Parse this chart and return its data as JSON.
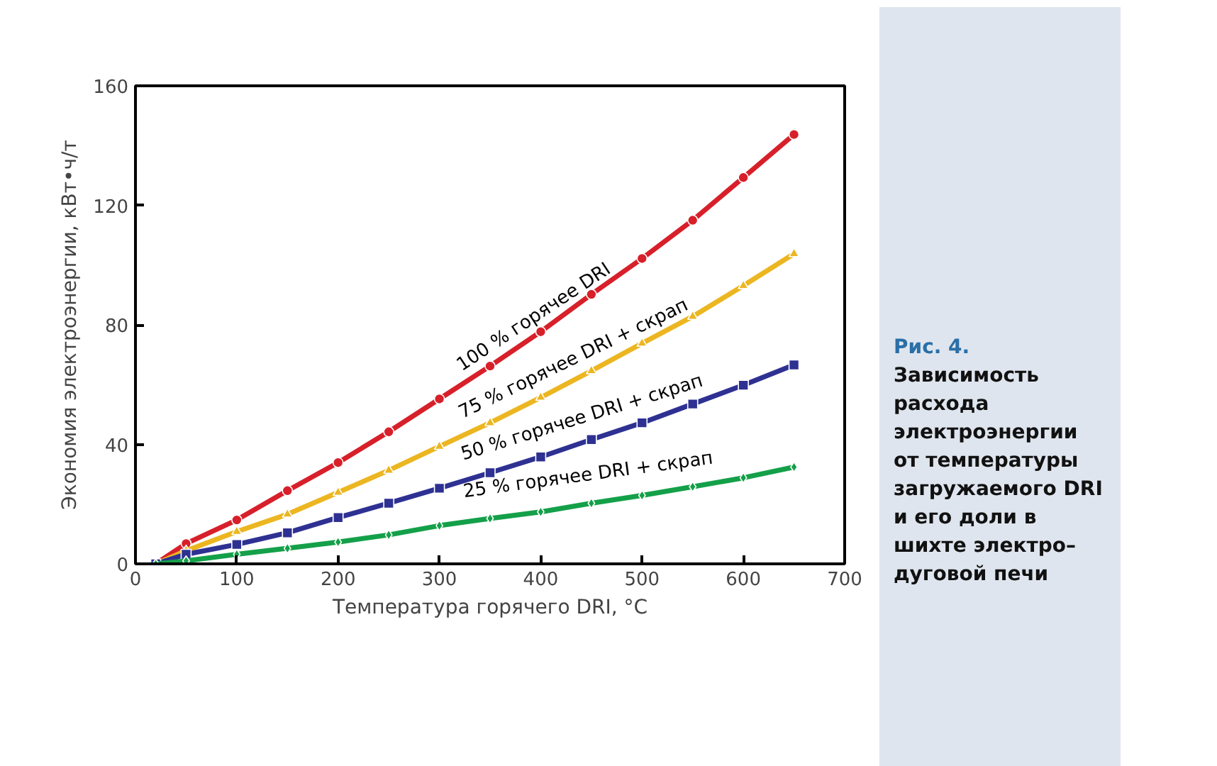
{
  "chart_data": {
    "type": "line",
    "xlabel": "Температура горячего DRI, °C",
    "ylabel": "Экономия электроэнергии, кВт•ч/т",
    "x": [
      20,
      50,
      100,
      150,
      200,
      250,
      300,
      350,
      400,
      450,
      500,
      550,
      600,
      650
    ],
    "series": [
      {
        "name": "100 % горячее DRI",
        "color": "#d7202a",
        "marker": "circle",
        "values": [
          0,
          6.8,
          14.7,
          24.5,
          33.9,
          44.2,
          55.2,
          66.2,
          77.7,
          90.2,
          102.2,
          115,
          129.3,
          143.7
        ]
      },
      {
        "name": "75 % горячее DRI + скрап",
        "color": "#ecb621",
        "marker": "triangle",
        "values": [
          0,
          4.4,
          10.8,
          16.6,
          23.9,
          31.3,
          39.3,
          47.2,
          55.7,
          64.6,
          73.8,
          82.8,
          93.1,
          103.8
        ]
      },
      {
        "name": "50 % горячее DRI + скрап",
        "color": "#2e3192",
        "marker": "square",
        "values": [
          0,
          3.2,
          6.5,
          10.4,
          15.5,
          20.3,
          25.3,
          30.5,
          35.8,
          41.6,
          47.2,
          53.5,
          59.8,
          66.6
        ]
      },
      {
        "name": "25 % горячее DRI + скрап",
        "color": "#14a049",
        "marker": "diamond",
        "values": [
          0,
          1.0,
          3.2,
          5.2,
          7.3,
          9.7,
          12.8,
          15.2,
          17.4,
          20.3,
          22.9,
          25.8,
          28.8,
          32.4
        ]
      }
    ],
    "xlim": [
      0,
      700
    ],
    "xticks": [
      0,
      100,
      200,
      300,
      400,
      500,
      600,
      700
    ],
    "ylim": [
      0,
      160
    ],
    "yticks": [
      0,
      40,
      80,
      120,
      160
    ],
    "grid": false,
    "line_style": "solid",
    "annotations": [
      "Рис. 4.",
      "Зависимость расхода электроэнергии от температуры загружаемого DRI и его доли в шихте электро–дуговой печи"
    ]
  }
}
